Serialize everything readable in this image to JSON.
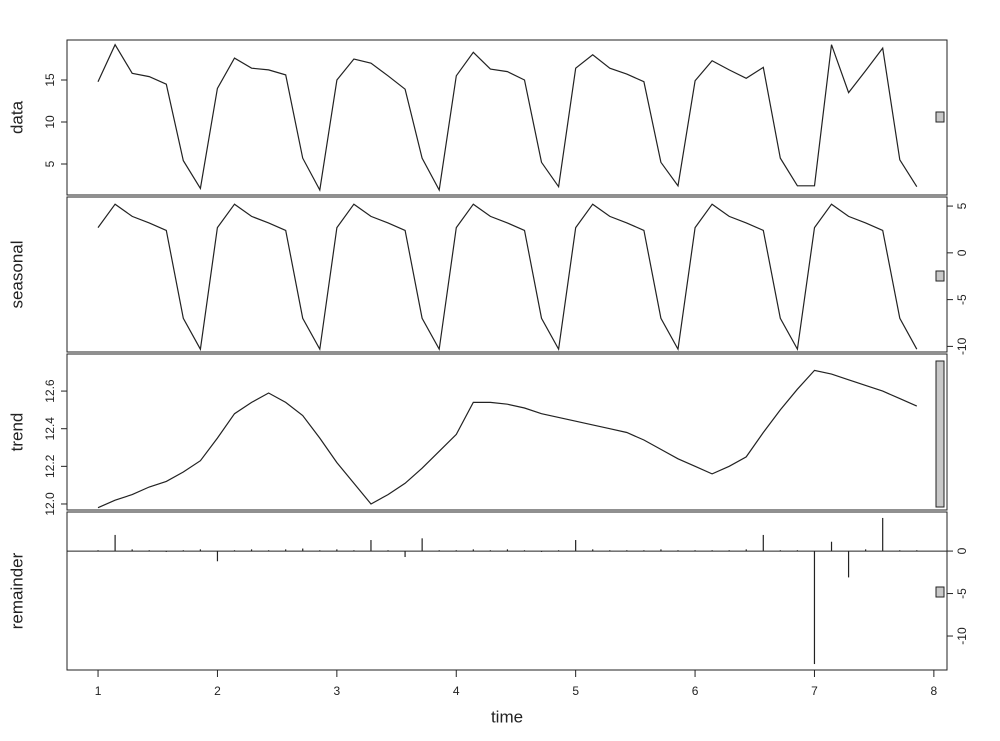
{
  "chart_data": [
    {
      "type": "line",
      "y_label": "data",
      "x": [
        1,
        1.1429,
        1.2857,
        1.4286,
        1.5714,
        1.7143,
        1.8571,
        2,
        2.1429,
        2.2857,
        2.4286,
        2.5714,
        2.7143,
        2.8571,
        3,
        3.1429,
        3.2857,
        3.4286,
        3.5714,
        3.7143,
        3.8571,
        4,
        4.1429,
        4.2857,
        4.4286,
        4.5714,
        4.7143,
        4.8571,
        5,
        5.1429,
        5.2857,
        5.4286,
        5.5714,
        5.7143,
        5.8571,
        6,
        6.1429,
        6.2857,
        6.4286,
        6.5714,
        6.7143,
        6.8571,
        7,
        7.1429,
        7.2857,
        7.4286,
        7.5714,
        7.7143,
        7.8571
      ],
      "values": [
        14.8,
        19.2,
        15.8,
        15.4,
        14.5,
        5.4,
        2.1,
        14.0,
        17.6,
        16.4,
        16.2,
        15.6,
        5.7,
        1.9,
        15.0,
        17.5,
        17.0,
        15.5,
        13.9,
        5.7,
        1.9,
        15.5,
        18.3,
        16.3,
        16.0,
        15.0,
        5.2,
        2.3,
        16.4,
        18.0,
        16.4,
        15.7,
        14.8,
        5.2,
        2.4,
        14.9,
        17.3,
        16.2,
        15.2,
        16.5,
        5.7,
        2.4,
        2.4,
        19.2,
        13.5,
        16.1,
        18.8,
        5.5,
        2.3
      ],
      "color": "#222222",
      "xlim": [
        0.74,
        8.11
      ],
      "ylim": [
        1.31,
        19.76
      ],
      "yticks": [
        5,
        10,
        15
      ],
      "y_axis_side": "left"
    },
    {
      "type": "line",
      "y_label": "seasonal",
      "x": [
        1,
        1.1429,
        1.2857,
        1.4286,
        1.5714,
        1.7143,
        1.8571,
        2,
        2.1429,
        2.2857,
        2.4286,
        2.5714,
        2.7143,
        2.8571,
        3,
        3.1429,
        3.2857,
        3.4286,
        3.5714,
        3.7143,
        3.8571,
        4,
        4.1429,
        4.2857,
        4.4286,
        4.5714,
        4.7143,
        4.8571,
        5,
        5.1429,
        5.2857,
        5.4286,
        5.5714,
        5.7143,
        5.8571,
        6,
        6.1429,
        6.2857,
        6.4286,
        6.5714,
        6.7143,
        6.8571,
        7,
        7.1429,
        7.2857,
        7.4286,
        7.5714,
        7.7143,
        7.8571
      ],
      "values": [
        2.7,
        5.2,
        3.9,
        3.2,
        2.4,
        -7.0,
        -10.3,
        2.7,
        5.2,
        3.9,
        3.2,
        2.4,
        -7.0,
        -10.3,
        2.7,
        5.2,
        3.9,
        3.2,
        2.4,
        -7.0,
        -10.3,
        2.7,
        5.2,
        3.9,
        3.2,
        2.4,
        -7.0,
        -10.3,
        2.7,
        5.2,
        3.9,
        3.2,
        2.4,
        -7.0,
        -10.3,
        2.7,
        5.2,
        3.9,
        3.2,
        2.4,
        -7.0,
        -10.3,
        2.7,
        5.2,
        3.9,
        3.2,
        2.4,
        -7.0,
        -10.3
      ],
      "color": "#222222",
      "xlim": [
        0.74,
        8.11
      ],
      "ylim": [
        -10.6,
        5.97
      ],
      "yticks": [
        5,
        0,
        -5,
        -10
      ],
      "y_axis_side": "right"
    },
    {
      "type": "line",
      "y_label": "trend",
      "x": [
        1,
        1.1429,
        1.2857,
        1.4286,
        1.5714,
        1.7143,
        1.8571,
        2,
        2.1429,
        2.2857,
        2.4286,
        2.5714,
        2.7143,
        2.8571,
        3,
        3.1429,
        3.2857,
        3.4286,
        3.5714,
        3.7143,
        3.8571,
        4,
        4.1429,
        4.2857,
        4.4286,
        4.5714,
        4.7143,
        4.8571,
        5,
        5.1429,
        5.2857,
        5.4286,
        5.5714,
        5.7143,
        5.8571,
        6,
        6.1429,
        6.2857,
        6.4286,
        6.5714,
        6.7143,
        6.8571,
        7,
        7.1429,
        7.2857,
        7.4286,
        7.5714,
        7.7143,
        7.8571
      ],
      "values": [
        11.98,
        12.02,
        12.05,
        12.09,
        12.12,
        12.17,
        12.23,
        12.35,
        12.48,
        12.54,
        12.59,
        12.54,
        12.47,
        12.35,
        12.22,
        12.11,
        12.0,
        12.05,
        12.11,
        12.19,
        12.28,
        12.37,
        12.54,
        12.54,
        12.53,
        12.51,
        12.48,
        12.46,
        12.44,
        12.42,
        12.4,
        12.38,
        12.34,
        12.29,
        12.24,
        12.2,
        12.16,
        12.2,
        12.25,
        12.38,
        12.5,
        12.61,
        12.71,
        12.69,
        12.66,
        12.63,
        12.6,
        12.56,
        12.52
      ],
      "color": "#222222",
      "xlim": [
        0.74,
        8.11
      ],
      "ylim": [
        11.968,
        12.797
      ],
      "yticks": [
        {
          "value": 12,
          "label": "12.0"
        },
        12.2,
        12.4,
        12.6
      ],
      "y_axis_side": "left"
    },
    {
      "type": "bar",
      "y_label": "remainder",
      "x_label": "time",
      "x": [
        1,
        1.1429,
        1.2857,
        1.4286,
        1.5714,
        1.7143,
        1.8571,
        2,
        2.1429,
        2.2857,
        2.4286,
        2.5714,
        2.7143,
        2.8571,
        3,
        3.1429,
        3.2857,
        3.4286,
        3.5714,
        3.7143,
        3.8571,
        4,
        4.1429,
        4.2857,
        4.4286,
        4.5714,
        4.7143,
        4.8571,
        5,
        5.1429,
        5.2857,
        5.4286,
        5.5714,
        5.7143,
        5.8571,
        6,
        6.1429,
        6.2857,
        6.4286,
        6.5714,
        6.7143,
        6.8571,
        7,
        7.1429,
        7.2857,
        7.4286,
        7.5714,
        7.7143,
        7.8571
      ],
      "values": [
        0.1,
        1.9,
        0.2,
        0.1,
        -0.1,
        0.1,
        0.2,
        -1.2,
        0.1,
        0.2,
        0.1,
        0.2,
        0.3,
        0.1,
        0.2,
        0.1,
        1.3,
        0.1,
        -0.7,
        1.5,
        0.1,
        0.1,
        0.2,
        0.1,
        0.2,
        0.1,
        -0.1,
        0.1,
        1.3,
        0.2,
        0.1,
        0.1,
        0.1,
        0.2,
        0.1,
        0.1,
        0.1,
        0.1,
        0.2,
        1.9,
        0.1,
        0.1,
        -13.3,
        1.1,
        -3.1,
        0.2,
        3.9,
        0.1,
        0.1
      ],
      "color": "#222222",
      "xlim": [
        0.74,
        8.11
      ],
      "xticks": [
        1,
        2,
        3,
        4,
        5,
        6,
        7,
        8
      ],
      "ylim": [
        -14.0,
        4.6
      ],
      "yticks": [
        0,
        -5,
        -10
      ],
      "y_axis_side": "right"
    }
  ]
}
